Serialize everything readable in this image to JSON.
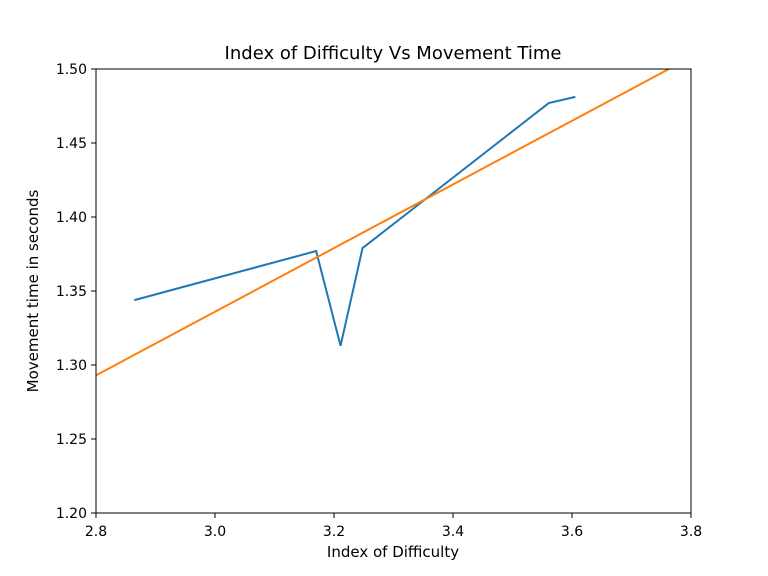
{
  "chart_data": {
    "type": "line",
    "title": "Index of Difficulty Vs Movement Time",
    "xlabel": "Index of Difficulty",
    "ylabel": "Movement time in seconds",
    "xlim": [
      2.8,
      3.8
    ],
    "ylim": [
      1.2,
      1.5
    ],
    "xticks": [
      "2.8",
      "3.0",
      "3.2",
      "3.4",
      "3.6",
      "3.8"
    ],
    "yticks": [
      "1.20",
      "1.25",
      "1.30",
      "1.35",
      "1.40",
      "1.45",
      "1.50"
    ],
    "grid": false,
    "series": [
      {
        "color": "#1f77b4",
        "x": [
          2.866,
          3.17,
          3.211,
          3.248,
          3.561,
          3.604
        ],
        "y": [
          1.344,
          1.377,
          1.313,
          1.379,
          1.477,
          1.481
        ]
      },
      {
        "color": "#ff7f0e",
        "x": [
          2.8,
          3.8
        ],
        "y": [
          1.293,
          1.508
        ]
      }
    ]
  }
}
